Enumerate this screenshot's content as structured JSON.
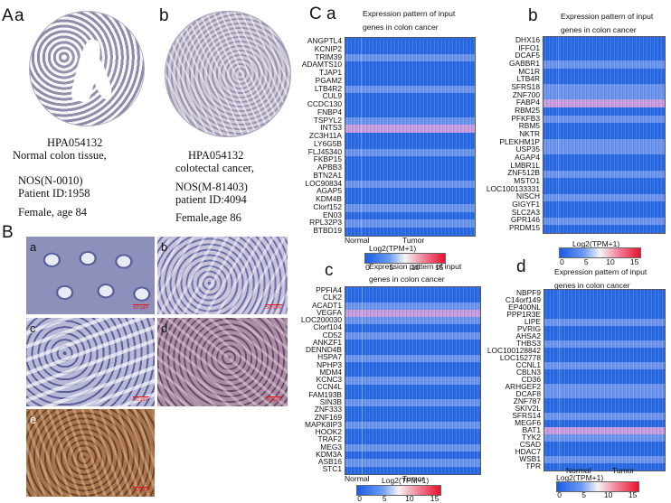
{
  "panels": {
    "A": {
      "letter": "A",
      "a": "a",
      "b": "b"
    },
    "B": {
      "letter": "B",
      "a": "a",
      "b": "b",
      "c": "c",
      "d": "d",
      "e": "e",
      "scale": "50 μm"
    },
    "C": {
      "letter": "C",
      "a": "a",
      "b": "b",
      "c": "c",
      "d": "d"
    }
  },
  "captions": {
    "left": [
      "HPA054132",
      "Normal colon tissue,",
      "NOS(N-0010)",
      "Patient ID:1958",
      "Female, age 84"
    ],
    "right": [
      "HPA054132",
      "colotectal cancer,",
      "NOS(M-81403)",
      "patient ID:4094",
      "Female,age 86"
    ]
  },
  "heatmap_common": {
    "title_line1": "Expression pattern of  input",
    "title_line2": "genes in colon cancer",
    "xlabel_normal": "Normal",
    "xlabel_tumor": "Tumor",
    "colorbar_label": "Log2(TPM+1)",
    "colorbar_ticks": [
      "0",
      "5",
      "10",
      "15"
    ],
    "colors": {
      "low": "#1b5ce6",
      "mid": "#f5f5f5",
      "high": "#e8112d",
      "base": "#3a78e0",
      "pink": "#d998d9"
    }
  },
  "heatmaps": {
    "a": {
      "genes": [
        "ANGPTL4",
        "KCNIP2",
        "TRIM39",
        "ADAMTS10",
        "TJAP1",
        "PGAM2",
        "LTB4R2",
        "CUL9",
        "CCDC130",
        "FNBP4",
        "TSPYL2",
        "INTS3",
        "ZC3H11A",
        "LY6G5B",
        "FLJ45340",
        "FKBP15",
        "APBB3",
        "BTN2A1",
        "LOC90834",
        "AGAP5",
        "KDM4B",
        "Clorf152",
        "EN03",
        "RPL32P3",
        "BTBD19"
      ]
    },
    "b": {
      "genes": [
        "DHX16",
        "IFFO1",
        "DCAF5",
        "GABBR1",
        "MC1R",
        "LTB4R",
        "SFRS18",
        "ZNF700",
        "FABP4",
        "RBM25",
        "PFKFB3",
        "RBM5",
        "NKTR",
        "PLEKHM1P",
        "USP35",
        "AGAP4",
        "LMBR1L",
        "ZNF512B",
        "MSTO1",
        "LOC100133331",
        "NISCH",
        "GIGYF1",
        "SLC2A3",
        "GPR146",
        "PRDM15"
      ]
    },
    "c": {
      "genes": [
        "PPFIA4",
        "CLK2",
        "ACADT1",
        "VEGFA",
        "LOC200030",
        "Clorf104",
        "CD52",
        "ANKZF1",
        "DENND4B",
        "HSPA7",
        "NPHP3",
        "MDM4",
        "KCNC3",
        "CCN4L",
        "FAM193B",
        "SIN3B",
        "ZNF333",
        "ZNF169",
        "MAPK8IP3",
        "HOOK2",
        "TRAF2",
        "MEG3",
        "KDM3A",
        "ASB16",
        "STC1"
      ]
    },
    "d": {
      "genes": [
        "NBPF9",
        "C14orf149",
        "EP400NL",
        "PPP1R3E",
        "LIPE",
        "PVRIG",
        "AHSA2",
        "THBS3",
        "LOC100128842",
        "LOC152778",
        "CCNL1",
        "CBLN3",
        "CD36",
        "ARHGEF2",
        "DCAF8",
        "ZNF787",
        "SKIV2L",
        "SFRS14",
        "MEGF6",
        "BAT1",
        "TYK2",
        "CSAD",
        "HDAC7",
        "WSB1",
        "TPR"
      ]
    }
  }
}
